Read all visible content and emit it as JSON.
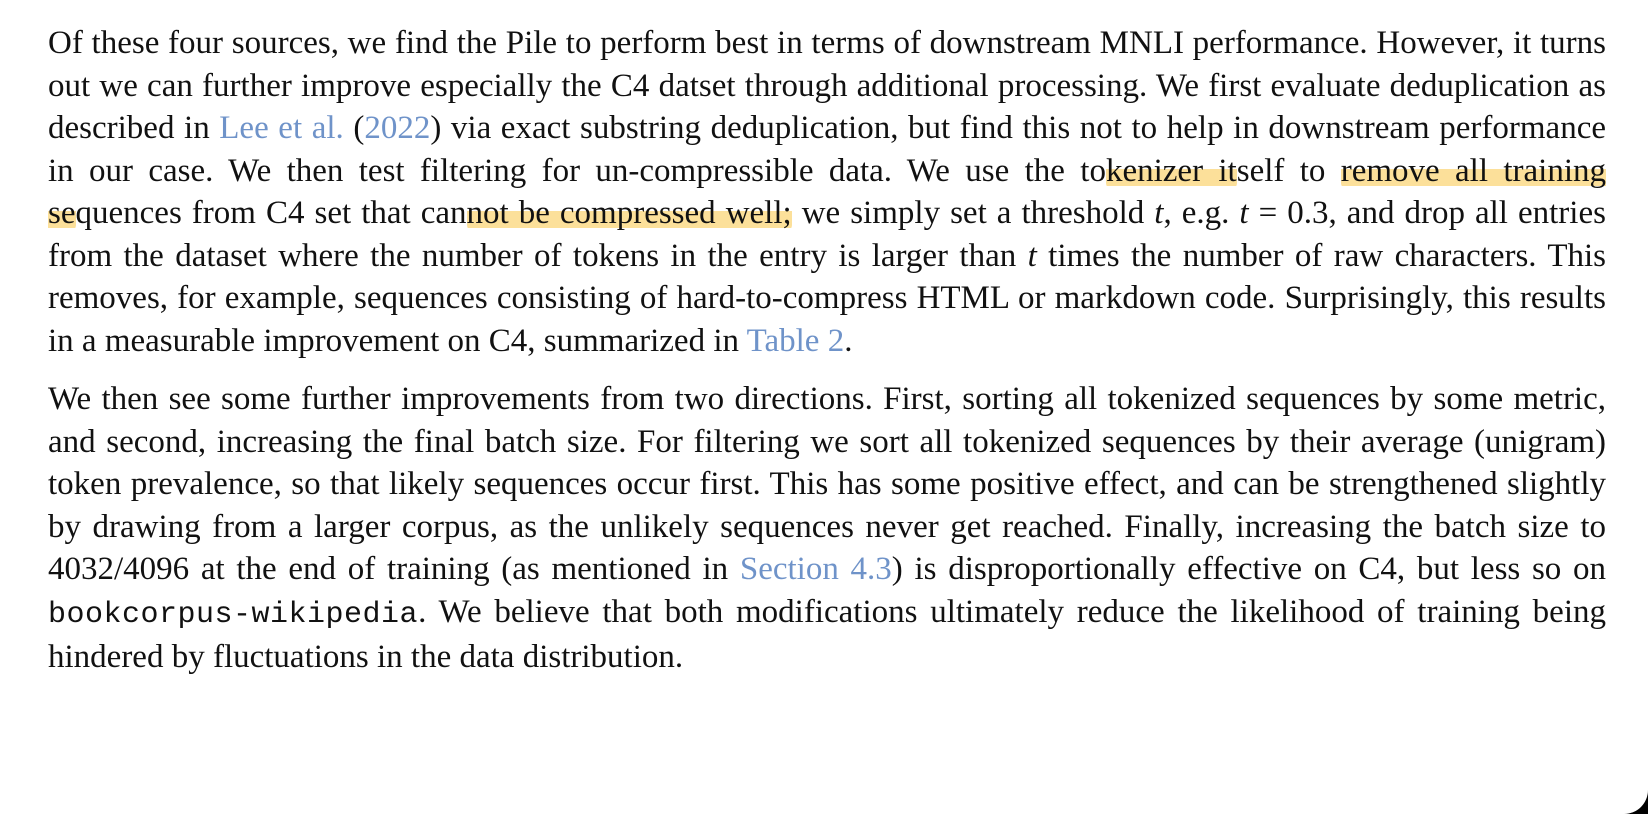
{
  "paragraph1": {
    "t1": "Of these four sources, we find the Pile to perform best in terms of downstream MNLI performance. However, it turns out we can further improve especially the C4 datset through additional processing. We first evaluate deduplication as described in ",
    "ref_lee": "Lee et al.",
    "t2": " (",
    "ref_year": "2022",
    "t3": ") via exact substring deduplication, but find this not to help in downstream performance in our case.  We then test filtering for un-­compressible data.  We use the to",
    "hl1": "kenizer it",
    "t4": "self to ",
    "hl2": "remove all training se",
    "t5": "quences from C4 set that can",
    "hl3": "not be compressed well;",
    "t6": " we simply set a threshold ",
    "var_t1": "t",
    "t7": ", e.g. ",
    "var_t2": "t",
    "eq": " = 0.3",
    "t8": ", and drop all entries from the dataset where the number of tokens in the entry is larger than ",
    "var_t3": "t",
    "t9": " times the number of raw characters. This removes, for example, sequences consisting of hard-to-compress HTML or markdown code. Surprisingly, this results in a measurable improvement on C4, summarized in ",
    "ref_table": "Table 2",
    "t10": "."
  },
  "paragraph2": {
    "t1": "We then see some further improvements from two directions. First, sorting all tokenized sequences by some metric, and second, increasing the final batch size.  For filtering we sort all tokenized sequences by their average (unigram) token prevalence, so that likely sequences occur first.  This has some positive effect, and can be strengthened slightly by drawing from a larger corpus, as the unlikely sequences never get reached.  Finally, increasing the batch size to ",
    "batch": "4032/4096",
    "t2": " at the end of training (as mentioned in ",
    "ref_section": "Section 4.3",
    "t3": ") is disproportionally effective on C4, but less so on ",
    "mono": "bookcorpus-wikipedia",
    "t4": ". We believe that both modifications ultimately reduce the likelihood of training being hindered by fluctuations in the data distribution."
  },
  "colors": {
    "link": "#6f93c9",
    "highlight": "#fbd678",
    "text": "#111111"
  }
}
